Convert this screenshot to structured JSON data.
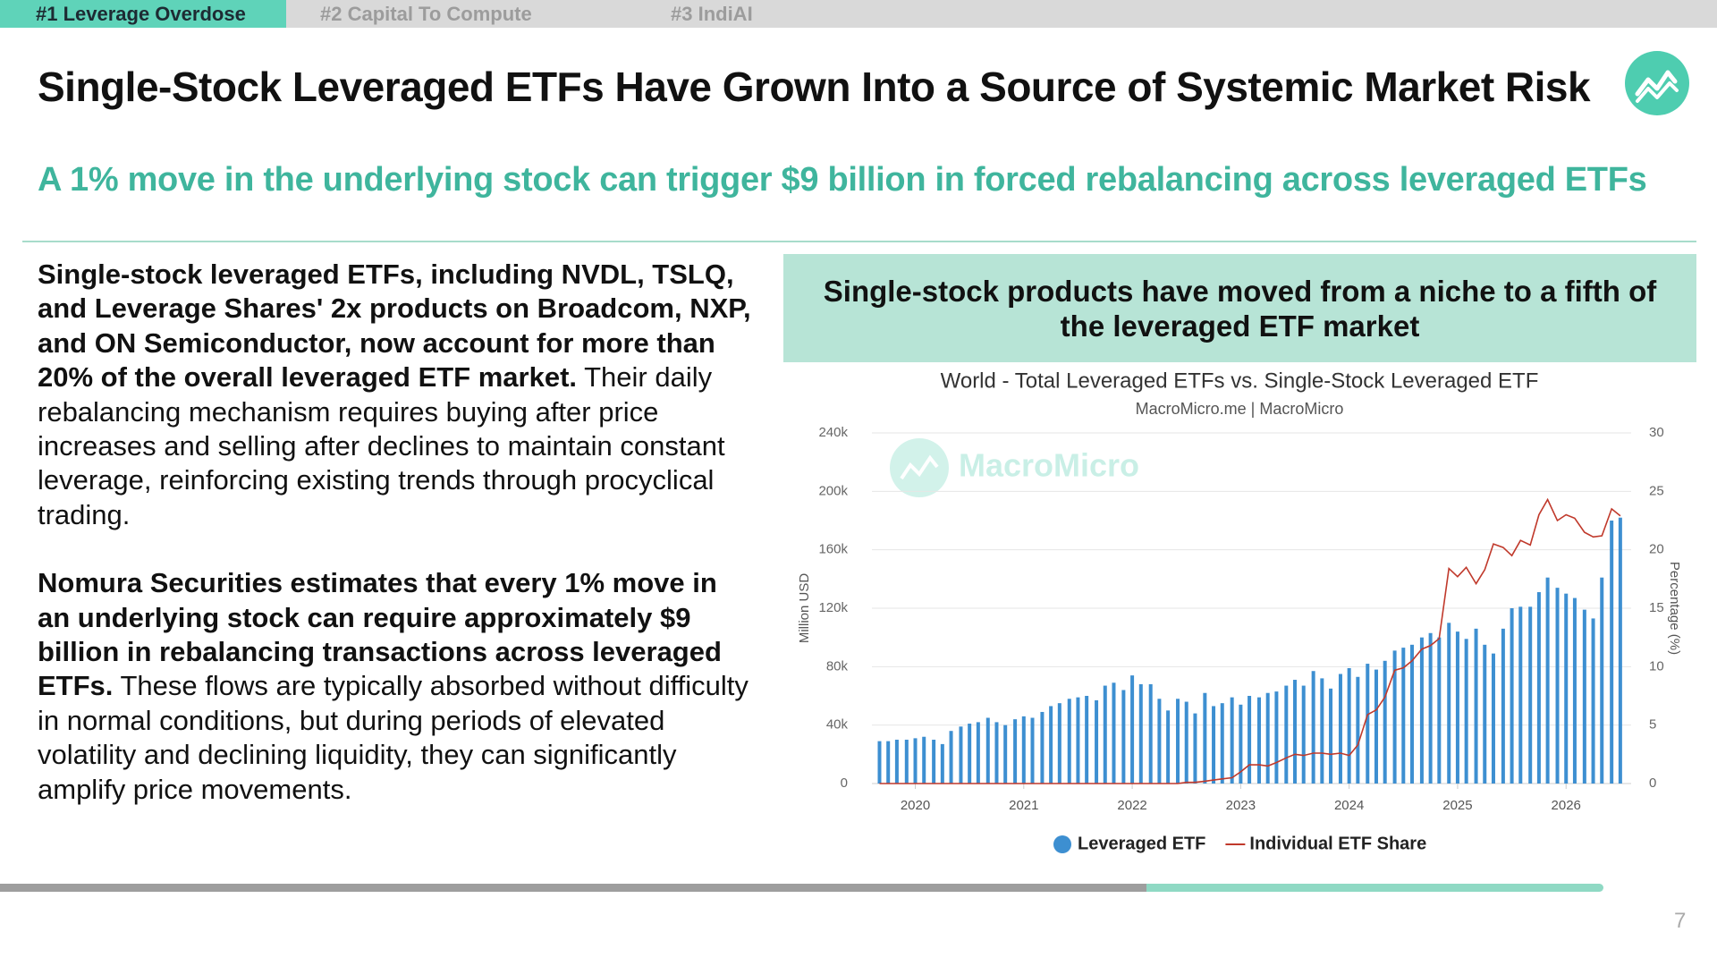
{
  "tabs": [
    "#1 Leverage Overdose",
    "#2 Capital To Compute",
    "#3 IndiAI"
  ],
  "header": {
    "title": "Single-Stock Leveraged ETFs Have Grown Into a Source of Systemic Market Risk",
    "subtitle": "A 1% move in the underlying stock can trigger $9 billion in forced rebalancing across leveraged ETFs"
  },
  "body": {
    "paragraphs": [
      {
        "bold": "Single-stock leveraged ETFs, including NVDL, TSLQ, and Leverage Shares' 2x products on Broadcom, NXP, and ON Semiconductor, now account for more than 20% of the overall leveraged ETF market.",
        "text": "Their daily rebalancing mechanism requires buying after price increases and selling after declines to maintain constant leverage, reinforcing existing trends through procyclical trading."
      },
      {
        "bold": "Nomura Securities estimates that every 1% move in an underlying stock can require approximately $9 billion in rebalancing transactions across leveraged ETFs.",
        "text": "These flows are typically absorbed without difficulty in normal conditions, but during periods of elevated volatility and declining liquidity, they can significantly amplify price movements."
      }
    ]
  },
  "panel": {
    "heading": "Single-stock products have moved from a niche to a fifth of the leveraged ETF market"
  },
  "chart_data": {
    "type": "bar",
    "title": "World - Total Leveraged ETFs vs. Single-Stock Leveraged ETF",
    "subtitle": "MacroMicro.me | MacroMicro",
    "watermark": "MacroMicro",
    "ylabel": "Million USD",
    "y2label": "Percentage (%)",
    "x": [
      2019.67,
      2019.75,
      2019.83,
      2019.92,
      2020.0,
      2020.08,
      2020.17,
      2020.25,
      2020.33,
      2020.42,
      2020.5,
      2020.58,
      2020.67,
      2020.75,
      2020.83,
      2020.92,
      2021.0,
      2021.08,
      2021.17,
      2021.25,
      2021.33,
      2021.42,
      2021.5,
      2021.58,
      2021.67,
      2021.75,
      2021.83,
      2021.92,
      2022.0,
      2022.08,
      2022.17,
      2022.25,
      2022.33,
      2022.42,
      2022.5,
      2022.58,
      2022.67,
      2022.75,
      2022.83,
      2022.92,
      2023.0,
      2023.08,
      2023.17,
      2023.25,
      2023.33,
      2023.42,
      2023.5,
      2023.58,
      2023.67,
      2023.75,
      2023.83,
      2023.92,
      2024.0,
      2024.08,
      2024.17,
      2024.25,
      2024.33,
      2024.42,
      2024.5,
      2024.58,
      2024.67,
      2024.75,
      2024.83,
      2024.92,
      2025.0,
      2025.08,
      2025.17,
      2025.25,
      2025.33,
      2025.42,
      2025.5,
      2025.58,
      2025.67,
      2025.75,
      2025.83,
      2025.92,
      2026.0,
      2026.08,
      2026.17,
      2026.25,
      2026.33,
      2026.42,
      2026.5
    ],
    "xlim": [
      2019.6,
      2026.6
    ],
    "xticks": [
      2020,
      2021,
      2022,
      2023,
      2024,
      2025,
      2026
    ],
    "ylim": [
      0,
      240000
    ],
    "yticks": [
      0,
      {
        "value": 40000,
        "label": "40k"
      },
      {
        "value": 80000,
        "label": "80k"
      },
      {
        "value": 120000,
        "label": "120k"
      },
      {
        "value": 160000,
        "label": "160k"
      },
      {
        "value": 200000,
        "label": "200k"
      },
      {
        "value": 240000,
        "label": "240k"
      }
    ],
    "y2lim": [
      0,
      30
    ],
    "y2ticks": [
      0,
      5,
      10,
      15,
      20,
      25,
      30
    ],
    "grid": true,
    "legend": "bottom",
    "series": [
      {
        "name": "Leveraged ETF",
        "type": "bar",
        "color": "#3d8fd1",
        "values": [
          29000,
          29000,
          30000,
          30000,
          31000,
          32000,
          30000,
          27000,
          36000,
          39000,
          41000,
          42000,
          45000,
          42000,
          40000,
          44000,
          46000,
          45000,
          49000,
          53000,
          55000,
          58000,
          59000,
          60000,
          57000,
          67000,
          69000,
          64000,
          74000,
          68000,
          68000,
          58000,
          50000,
          58000,
          56000,
          48000,
          62000,
          53000,
          55000,
          59000,
          54000,
          60000,
          59000,
          62000,
          63000,
          67000,
          71000,
          67000,
          77000,
          72000,
          65000,
          75000,
          79000,
          73000,
          82000,
          78000,
          84000,
          91000,
          93000,
          95000,
          100000,
          103000,
          100000,
          110000,
          104000,
          99000,
          106000,
          95000,
          89000,
          106000,
          120000,
          121000,
          121000,
          131000,
          141000,
          134000,
          130000,
          127000,
          119000,
          113000,
          141000,
          180000,
          182000
        ]
      },
      {
        "name": "Individual ETF Share",
        "type": "line",
        "axis": "y2",
        "color": "#c0392b",
        "values": [
          0,
          0,
          0,
          0,
          0,
          0,
          0,
          0,
          0,
          0,
          0,
          0,
          0,
          0,
          0,
          0,
          0,
          0,
          0,
          0,
          0,
          0,
          0,
          0,
          0,
          0,
          0,
          0,
          0,
          0,
          0,
          0,
          0,
          0,
          0.1,
          0.1,
          0.2,
          0.3,
          0.4,
          0.5,
          1.0,
          1.6,
          1.6,
          1.5,
          1.8,
          2.2,
          2.5,
          2.4,
          2.6,
          2.6,
          2.5,
          2.6,
          2.4,
          3.3,
          5.9,
          6.3,
          7.4,
          9.7,
          9.9,
          10.5,
          11.5,
          11.8,
          12.4,
          18.4,
          17.7,
          18.5,
          17.1,
          18.3,
          20.5,
          20.2,
          19.5,
          20.8,
          20.4,
          23.0,
          24.3,
          22.5,
          23.0,
          22.7,
          21.5,
          21.1,
          21.2,
          23.5,
          22.9
        ]
      }
    ]
  },
  "page_number": 7
}
